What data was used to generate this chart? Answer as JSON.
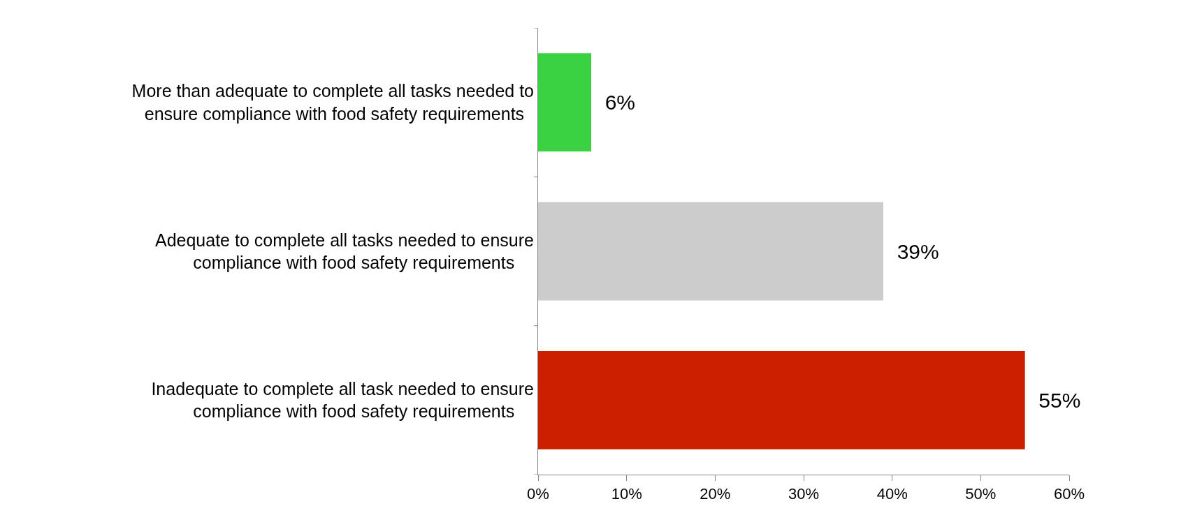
{
  "chart_data": {
    "type": "bar",
    "orientation": "horizontal",
    "categories": [
      "More than adequate to complete all tasks needed to ensure compliance with food safety requirements",
      "Adequate to complete all tasks needed to ensure compliance with food safety requirements",
      "Inadequate to complete all task needed to ensure compliance with food safety requirements"
    ],
    "values": [
      6,
      39,
      55
    ],
    "colors": [
      "#3ad142",
      "#cccccc",
      "#cc1f00"
    ],
    "value_labels": [
      "6%",
      "39%",
      "55%"
    ],
    "xlim": [
      0,
      60
    ],
    "xticks": [
      {
        "value": 0,
        "label": "0%"
      },
      {
        "value": 10,
        "label": "10%"
      },
      {
        "value": 20,
        "label": "20%"
      },
      {
        "value": 30,
        "label": "30%"
      },
      {
        "value": 40,
        "label": "40%"
      },
      {
        "value": 50,
        "label": "50%"
      },
      {
        "value": 60,
        "label": "60%"
      }
    ],
    "grid": false
  }
}
